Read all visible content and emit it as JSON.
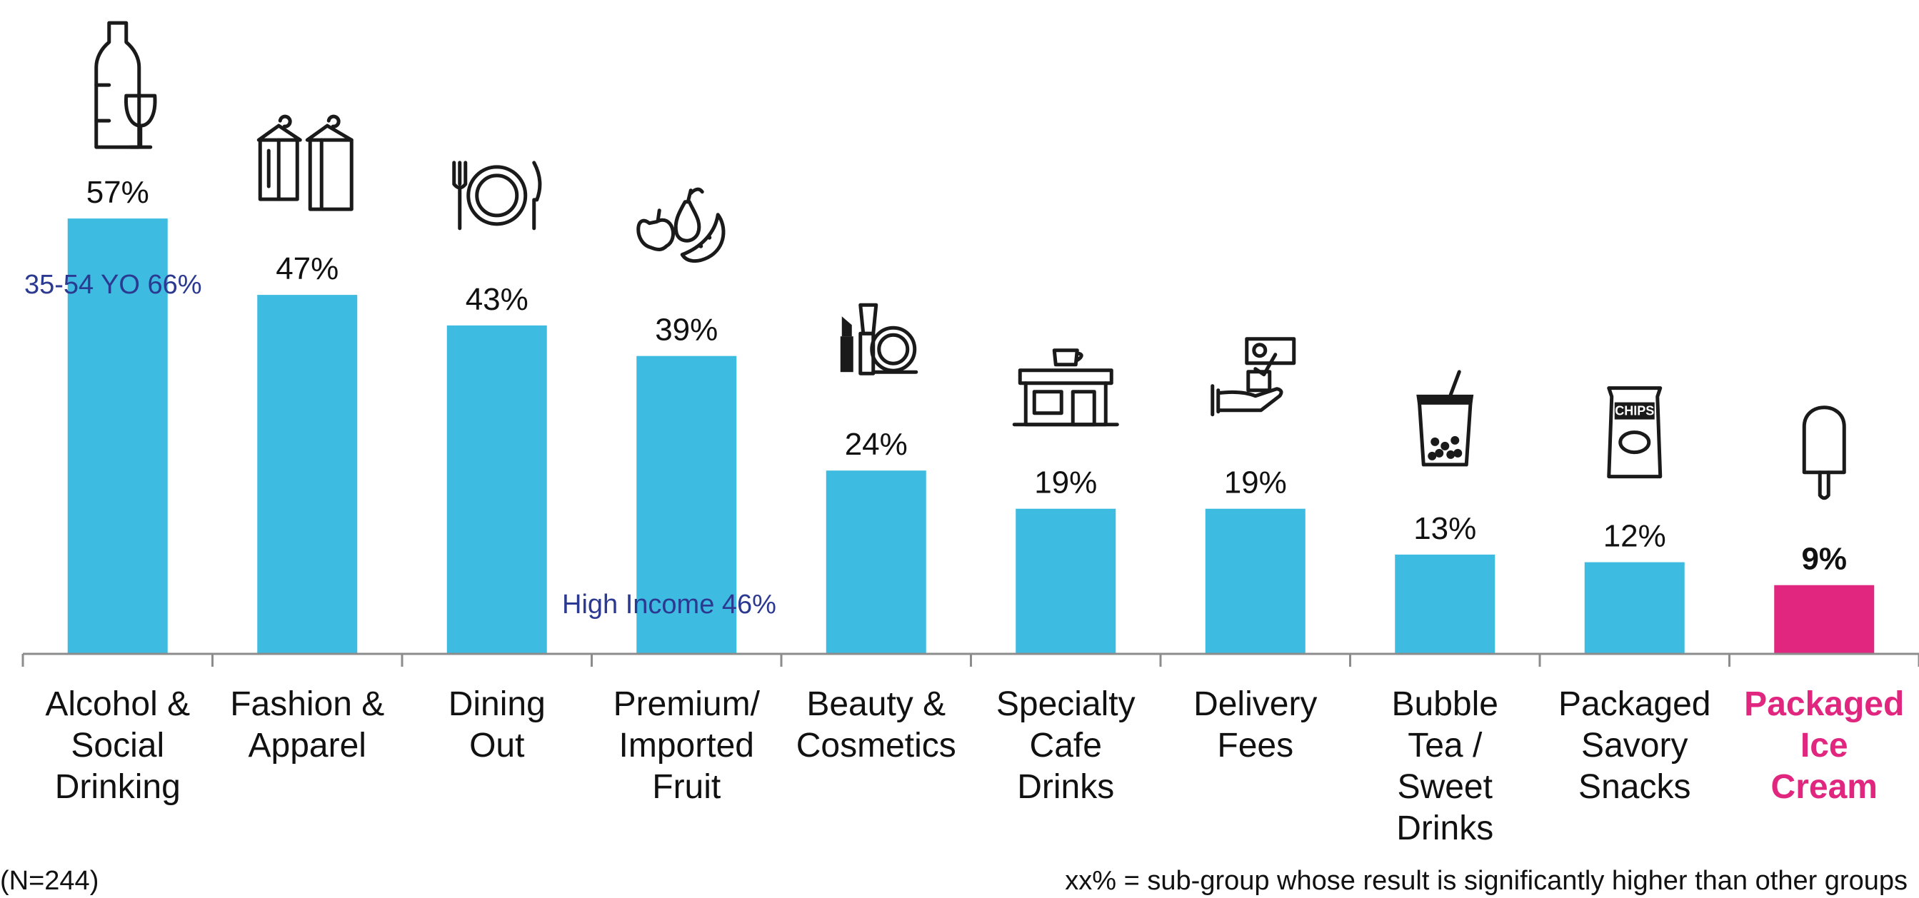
{
  "chart_data": {
    "type": "bar",
    "categories": [
      [
        "Alcohol &",
        "Social",
        "Drinking"
      ],
      [
        "Fashion &",
        "Apparel"
      ],
      [
        "Dining",
        "Out"
      ],
      [
        "Premium/",
        "Imported",
        "Fruit"
      ],
      [
        "Beauty &",
        "Cosmetics"
      ],
      [
        "Specialty",
        "Cafe",
        "Drinks"
      ],
      [
        "Delivery",
        "Fees"
      ],
      [
        "Bubble",
        "Tea /",
        "Sweet",
        "Drinks"
      ],
      [
        "Packaged",
        "Savory",
        "Snacks"
      ],
      [
        "Packaged",
        "Ice",
        "Cream"
      ]
    ],
    "values": [
      57,
      47,
      43,
      39,
      24,
      19,
      19,
      13,
      12,
      9
    ],
    "value_labels": [
      "57%",
      "47%",
      "43%",
      "39%",
      "24%",
      "19%",
      "19%",
      "13%",
      "12%",
      "9%"
    ],
    "icons": [
      "wine-bottle-glass-icon",
      "clothes-hanger-icon",
      "plate-fork-knife-icon",
      "fruit-icon",
      "makeup-icon",
      "cafe-shop-icon",
      "payment-hand-icon",
      "bubble-tea-icon",
      "chips-bag-icon",
      "ice-pop-icon"
    ],
    "highlight_index": 9,
    "colors": {
      "bar": "#3dbbe0",
      "highlight": "#e0267f",
      "subgroup_text": "#2b3990",
      "axis": "#8c8c8c"
    },
    "ylim": [
      0,
      62
    ],
    "subgroup_annotations": [
      {
        "category_index": 0,
        "text": "35-54 YO 66%"
      },
      {
        "category_index": 3,
        "text": "High Income 46%"
      }
    ],
    "title": "",
    "xlabel": "",
    "ylabel": ""
  },
  "footer": {
    "sample_size": "(N=244)",
    "legend_note": "xx% = sub-group whose result is significantly higher than other groups"
  }
}
